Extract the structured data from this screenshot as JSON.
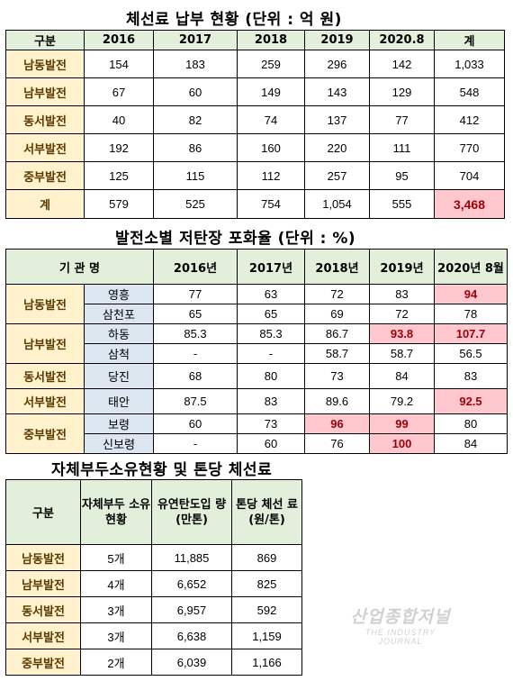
{
  "table1": {
    "title": "체선료 납부 현황 (단위 : 억 원)",
    "headers": [
      "구분",
      "2016",
      "2017",
      "2018",
      "2019",
      "2020.8",
      "계"
    ],
    "rows": [
      {
        "org": "남동발전",
        "values": [
          "154",
          "183",
          "259",
          "296",
          "142",
          "1,033"
        ]
      },
      {
        "org": "남부발전",
        "values": [
          "67",
          "60",
          "149",
          "143",
          "129",
          "548"
        ]
      },
      {
        "org": "동서발전",
        "values": [
          "40",
          "82",
          "74",
          "137",
          "77",
          "412"
        ]
      },
      {
        "org": "서부발전",
        "values": [
          "192",
          "86",
          "160",
          "220",
          "111",
          "770"
        ]
      },
      {
        "org": "중부발전",
        "values": [
          "125",
          "115",
          "112",
          "257",
          "95",
          "704"
        ]
      },
      {
        "org": "계",
        "values": [
          "579",
          "525",
          "754",
          "1,054",
          "555",
          "3,468"
        ]
      }
    ]
  },
  "table2": {
    "title": "발전소별 저탄장 포화율 (단위 : %)",
    "headers": [
      "기 관 명",
      "2016년",
      "2017년",
      "2018년",
      "2019년",
      "2020년 8월"
    ],
    "rows": [
      {
        "org": "남동발전",
        "plant": "영흥",
        "values": [
          "77",
          "63",
          "72",
          "83",
          "94"
        ]
      },
      {
        "plant": "삼천포",
        "values": [
          "65",
          "65",
          "69",
          "72",
          "78"
        ]
      },
      {
        "org": "남부발전",
        "plant": "하동",
        "values": [
          "85.3",
          "85.3",
          "86.7",
          "93.8",
          "107.7"
        ]
      },
      {
        "plant": "삼척",
        "values": [
          "-",
          "-",
          "58.7",
          "58.7",
          "56.5"
        ]
      },
      {
        "org": "동서발전",
        "plant": "당진",
        "values": [
          "68",
          "80",
          "73",
          "84",
          "83"
        ]
      },
      {
        "org": "서부발전",
        "plant": "태안",
        "values": [
          "87.5",
          "83",
          "89.6",
          "79.2",
          "92.5"
        ]
      },
      {
        "org": "중부발전",
        "plant": "보령",
        "values": [
          "60",
          "73",
          "96",
          "99",
          "80"
        ]
      },
      {
        "plant": "신보령",
        "values": [
          "-",
          "60",
          "76",
          "100",
          "84"
        ]
      }
    ]
  },
  "table3": {
    "title": "자체부두소유현황 및 톤당 체선료",
    "headers": [
      "구분",
      "자체부두 소유현황",
      "유연탄도입 량 (만톤)",
      "톤당 체선 료(원/톤)"
    ],
    "rows": [
      {
        "org": "남동발전",
        "values": [
          "5개",
          "11,885",
          "869"
        ]
      },
      {
        "org": "남부발전",
        "values": [
          "4개",
          "6,652",
          "825"
        ]
      },
      {
        "org": "동서발전",
        "values": [
          "3개",
          "6,957",
          "592"
        ]
      },
      {
        "org": "서부발전",
        "values": [
          "3개",
          "6,638",
          "1,159"
        ]
      },
      {
        "org": "중부발전",
        "values": [
          "2개",
          "6,039",
          "1,166"
        ]
      }
    ]
  },
  "watermark": {
    "main": "산업종합저널",
    "sub": "THE INDUSTRY JOURNAL"
  },
  "colors": {
    "header_bg": "#e2efda",
    "org_bg": "#fff2cc",
    "plant_bg": "#dce6f1",
    "highlight_bg": "#ffc7ce",
    "highlight_text": "#9c0006"
  }
}
